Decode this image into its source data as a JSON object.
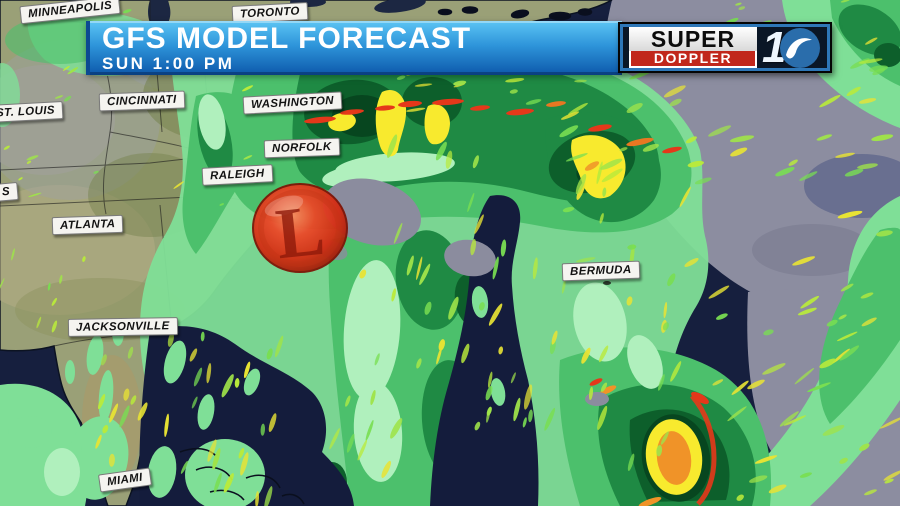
{
  "header": {
    "title": "GFS MODEL FORECAST",
    "time": "SUN 1:00 PM"
  },
  "logo": {
    "top": "SUPER",
    "bottom": "DOPPLER",
    "channel_digit": "1",
    "channel_number": "10"
  },
  "map": {
    "low_marker": "L",
    "labels": [
      {
        "id": "minneapolis",
        "text": "MINNEAPOLIS"
      },
      {
        "id": "toronto",
        "text": "TORONTO"
      },
      {
        "id": "st-louis",
        "text": "ST. LOUIS"
      },
      {
        "id": "partial-s",
        "text": "S"
      },
      {
        "id": "cincinnati",
        "text": "CINCINNATI"
      },
      {
        "id": "washington",
        "text": "WASHINGTON"
      },
      {
        "id": "norfolk",
        "text": "NORFOLK"
      },
      {
        "id": "raleigh",
        "text": "RALEIGH"
      },
      {
        "id": "atlanta",
        "text": "ATLANTA"
      },
      {
        "id": "jacksonville",
        "text": "JACKSONVILLE"
      },
      {
        "id": "miami",
        "text": "MIAMI"
      },
      {
        "id": "bermuda",
        "text": "BERMUDA"
      }
    ]
  },
  "palette": {
    "ocean": "#161f3e",
    "cloud_gray": "#8c8da0",
    "land": "#9aa077",
    "rain_light": "#7fdf97",
    "rain_pale": "#b0f0bd",
    "rain_moderate": "#4cc06c",
    "rain_heavy": "#1f8a44",
    "rain_intense": "#0d5f2b",
    "rain_core_dark": "#07461f",
    "rain_yellow": "#f8ea2e",
    "rain_orange": "#f09328",
    "rain_red": "#e5381a",
    "banner_top": "#5cc5f4",
    "banner_bottom": "#0d58ab",
    "logo_red": "#c1271b",
    "low_marker_red": "#d42a10"
  }
}
